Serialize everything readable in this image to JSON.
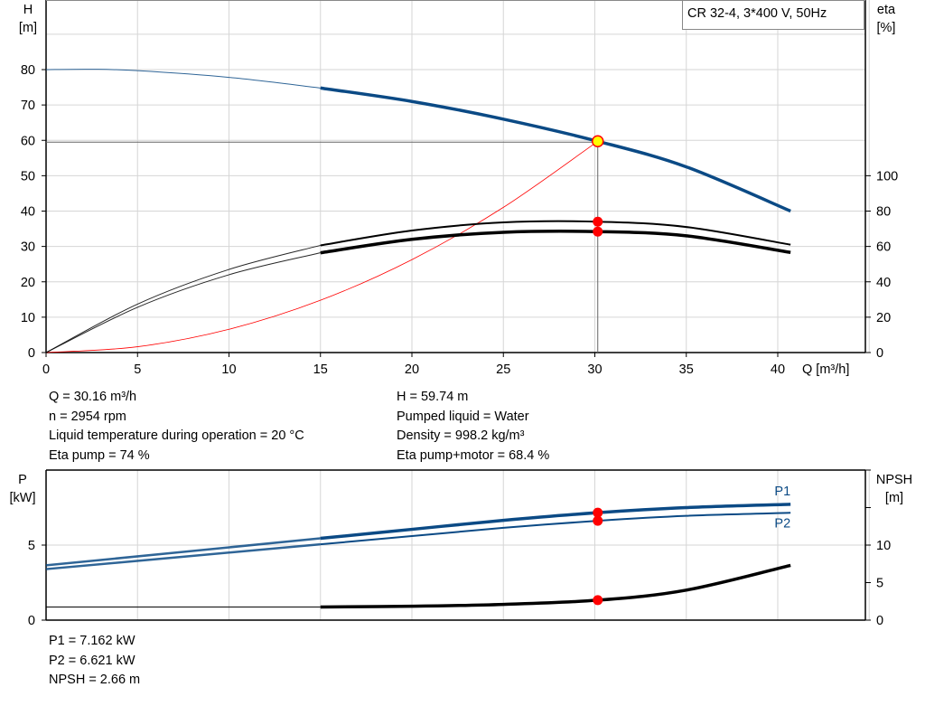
{
  "chart_data": [
    {
      "type": "line",
      "title": "CR 32-4, 3*400 V, 50Hz",
      "xlabel": "Q [m³/h]",
      "ylabel_left": [
        "H",
        "[m]"
      ],
      "ylabel_right": [
        "eta",
        "[%]"
      ],
      "xlim": [
        0,
        45
      ],
      "ylim_left": [
        0,
        100
      ],
      "ylim_right": [
        0,
        200
      ],
      "x_ticks": [
        "0",
        "5",
        "10",
        "15",
        "20",
        "25",
        "30",
        "35",
        "40"
      ],
      "y_ticks_left": [
        "0",
        "10",
        "20",
        "30",
        "40",
        "50",
        "60",
        "70",
        "80"
      ],
      "y_ticks_right": [
        "0",
        "20",
        "40",
        "60",
        "80",
        "100"
      ],
      "grid": true,
      "duty_range_start_q": 15,
      "series": [
        {
          "key": "H",
          "axis": "left",
          "color": "#0b4a85",
          "x": [
            0,
            2.5,
            5,
            10,
            15,
            20,
            25,
            30.16,
            35,
            40.7
          ],
          "y": [
            80,
            80.1,
            79.7,
            77.8,
            74.8,
            71,
            66,
            59.74,
            52.5,
            40
          ]
        },
        {
          "key": "eta_pump",
          "axis": "right",
          "color": "#000000",
          "x": [
            0,
            5,
            10,
            15,
            20,
            25,
            30.16,
            35,
            40.7
          ],
          "y": [
            0,
            27.4,
            47,
            60.6,
            69,
            73.6,
            74,
            71,
            61
          ]
        },
        {
          "key": "eta_pump_motor",
          "axis": "right",
          "color": "#000000",
          "x": [
            0,
            5,
            10,
            15,
            20,
            25,
            30.16,
            35,
            40.7
          ],
          "y": [
            0,
            25.6,
            44,
            56.4,
            64,
            68,
            68.4,
            66,
            56.6
          ]
        },
        {
          "key": "system_curve",
          "axis": "left",
          "color": "#ff0000",
          "x": [
            0,
            5,
            10,
            15,
            20,
            25,
            30.16
          ],
          "y": [
            0,
            1.64,
            6.57,
            14.78,
            26.27,
            41.05,
            59.74
          ]
        }
      ],
      "operating_point": {
        "q": 30.16,
        "h": 59.74,
        "eta_pump": 74,
        "eta_pump_motor": 68.4
      }
    },
    {
      "type": "line",
      "ylabel_left": [
        "P",
        "[kW]"
      ],
      "ylabel_right": [
        "NPSH",
        "[m]"
      ],
      "xlim": [
        0,
        45
      ],
      "ylim_left": [
        0,
        10
      ],
      "ylim_right": [
        0,
        20
      ],
      "y_ticks_left": [
        "0",
        "5"
      ],
      "y_ticks_right": [
        "0",
        "5",
        "10"
      ],
      "grid": true,
      "series": [
        {
          "name": "P1",
          "axis": "left",
          "color": "#0b4a85",
          "x": [
            0,
            15,
            20,
            25,
            30.16,
            35,
            40.7
          ],
          "y": [
            3.65,
            5.45,
            6.05,
            6.65,
            7.16,
            7.5,
            7.72
          ]
        },
        {
          "name": "P2",
          "axis": "left",
          "color": "#0b4a85",
          "x": [
            0,
            15,
            20,
            25,
            30.16,
            35,
            40.7
          ],
          "y": [
            3.4,
            5.05,
            5.6,
            6.15,
            6.62,
            6.95,
            7.15
          ]
        },
        {
          "key": "NPSH",
          "axis": "right",
          "color": "#000000",
          "x": [
            0,
            15,
            20,
            25,
            30.16,
            35,
            40.7
          ],
          "y": [
            1.75,
            1.75,
            1.85,
            2.1,
            2.66,
            4,
            7.3
          ]
        }
      ],
      "operating_point": {
        "q": 30.16,
        "p1": 7.162,
        "p2": 6.621,
        "npsh": 2.66
      }
    }
  ],
  "info_top_left": [
    "Q = 30.16 m³/h",
    "n = 2954 rpm",
    "Liquid temperature during operation = 20 °C",
    "Eta pump = 74 %"
  ],
  "info_top_right": [
    "H = 59.74 m",
    "Pumped liquid = Water",
    "Density = 998.2 kg/m³",
    "Eta pump+motor = 68.4 %"
  ],
  "info_bottom": [
    "P1 = 7.162 kW",
    "P2 = 6.621 kW",
    "NPSH = 2.66 m"
  ]
}
